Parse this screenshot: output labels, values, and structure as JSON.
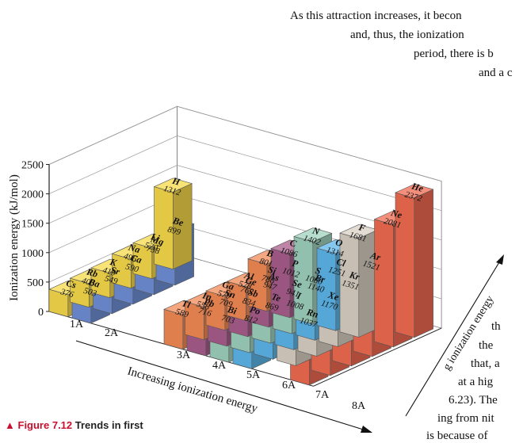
{
  "figure": {
    "number_label": "Figure 7.12",
    "title": "Trends in first",
    "marker": "▲"
  },
  "body_text": [
    "As this attraction increases, it becon",
    "and, thus, the ionization",
    "period, there is b",
    "and a c",
    "th",
    "the",
    "that, a",
    "at a hig",
    "6.23). The",
    "ing from nit",
    "is because of"
  ],
  "colors": {
    "1A": "#f6d94a",
    "2A": "#6f8fd6",
    "3A": "#f28a55",
    "4A": "#a85c8c",
    "5A": "#9fd1bd",
    "6A": "#5cb6ea",
    "7A": "#d8d0c4",
    "8A": "#f06a50"
  },
  "chart_data": {
    "type": "bar",
    "subtype": "3d-bar",
    "title": "Trends in first ionization energies",
    "ylabel": "Ionization energy (kJ/mol)",
    "ylim": [
      0,
      2500
    ],
    "yticks": [
      0,
      500,
      1000,
      1500,
      2000,
      2500
    ],
    "grid": true,
    "x_axis_label": "Increasing ionization energy",
    "depth_axis_label": "g ionization energy",
    "groups": [
      "1A",
      "2A",
      "3A",
      "4A",
      "5A",
      "6A",
      "7A",
      "8A"
    ],
    "periods": [
      1,
      2,
      3,
      4,
      5,
      6
    ],
    "bars": [
      {
        "symbol": "H",
        "value": 1312,
        "group": "1A",
        "period": 1
      },
      {
        "symbol": "Li",
        "value": 520,
        "group": "1A",
        "period": 2
      },
      {
        "symbol": "Na",
        "value": 496,
        "group": "1A",
        "period": 3
      },
      {
        "symbol": "K",
        "value": 419,
        "group": "1A",
        "period": 4
      },
      {
        "symbol": "Rb",
        "value": 403,
        "group": "1A",
        "period": 5
      },
      {
        "symbol": "Cs",
        "value": 376,
        "group": "1A",
        "period": 6
      },
      {
        "symbol": "Be",
        "value": 899,
        "group": "2A",
        "period": 2
      },
      {
        "symbol": "Mg",
        "value": 738,
        "group": "2A",
        "period": 3
      },
      {
        "symbol": "Ca",
        "value": 590,
        "group": "2A",
        "period": 4
      },
      {
        "symbol": "Sr",
        "value": 549,
        "group": "2A",
        "period": 5
      },
      {
        "symbol": "Ba",
        "value": 503,
        "group": "2A",
        "period": 6
      },
      {
        "symbol": "B",
        "value": 801,
        "group": "3A",
        "period": 2
      },
      {
        "symbol": "Al",
        "value": 578,
        "group": "3A",
        "period": 3
      },
      {
        "symbol": "Ga",
        "value": 579,
        "group": "3A",
        "period": 4
      },
      {
        "symbol": "In",
        "value": 558,
        "group": "3A",
        "period": 5
      },
      {
        "symbol": "Tl",
        "value": 589,
        "group": "3A",
        "period": 6
      },
      {
        "symbol": "C",
        "value": 1086,
        "group": "4A",
        "period": 2
      },
      {
        "symbol": "Si",
        "value": 786,
        "group": "4A",
        "period": 3
      },
      {
        "symbol": "Ge",
        "value": 762,
        "group": "4A",
        "period": 4
      },
      {
        "symbol": "Sn",
        "value": 709,
        "group": "4A",
        "period": 5
      },
      {
        "symbol": "Pb",
        "value": 716,
        "group": "4A",
        "period": 6
      },
      {
        "symbol": "N",
        "value": 1402,
        "group": "5A",
        "period": 2
      },
      {
        "symbol": "P",
        "value": 1012,
        "group": "5A",
        "period": 3
      },
      {
        "symbol": "As",
        "value": 947,
        "group": "5A",
        "period": 4
      },
      {
        "symbol": "Sb",
        "value": 834,
        "group": "5A",
        "period": 5
      },
      {
        "symbol": "Bi",
        "value": 703,
        "group": "5A",
        "period": 6
      },
      {
        "symbol": "O",
        "value": 1314,
        "group": "6A",
        "period": 2
      },
      {
        "symbol": "S",
        "value": 1000,
        "group": "6A",
        "period": 3
      },
      {
        "symbol": "Se",
        "value": 941,
        "group": "6A",
        "period": 4
      },
      {
        "symbol": "Te",
        "value": 869,
        "group": "6A",
        "period": 5
      },
      {
        "symbol": "Po",
        "value": 812,
        "group": "6A",
        "period": 6
      },
      {
        "symbol": "F",
        "value": 1681,
        "group": "7A",
        "period": 2
      },
      {
        "symbol": "Cl",
        "value": 1251,
        "group": "7A",
        "period": 3
      },
      {
        "symbol": "Br",
        "value": 1140,
        "group": "7A",
        "period": 4
      },
      {
        "symbol": "I",
        "value": 1008,
        "group": "7A",
        "period": 5
      },
      {
        "symbol": "He",
        "value": 2372,
        "group": "8A",
        "period": 1
      },
      {
        "symbol": "Ne",
        "value": 2081,
        "group": "8A",
        "period": 2
      },
      {
        "symbol": "Ar",
        "value": 1521,
        "group": "8A",
        "period": 3
      },
      {
        "symbol": "Kr",
        "value": 1351,
        "group": "8A",
        "period": 4
      },
      {
        "symbol": "Xe",
        "value": 1170,
        "group": "8A",
        "period": 5
      },
      {
        "symbol": "Rn",
        "value": 1037,
        "group": "8A",
        "period": 6
      }
    ]
  }
}
